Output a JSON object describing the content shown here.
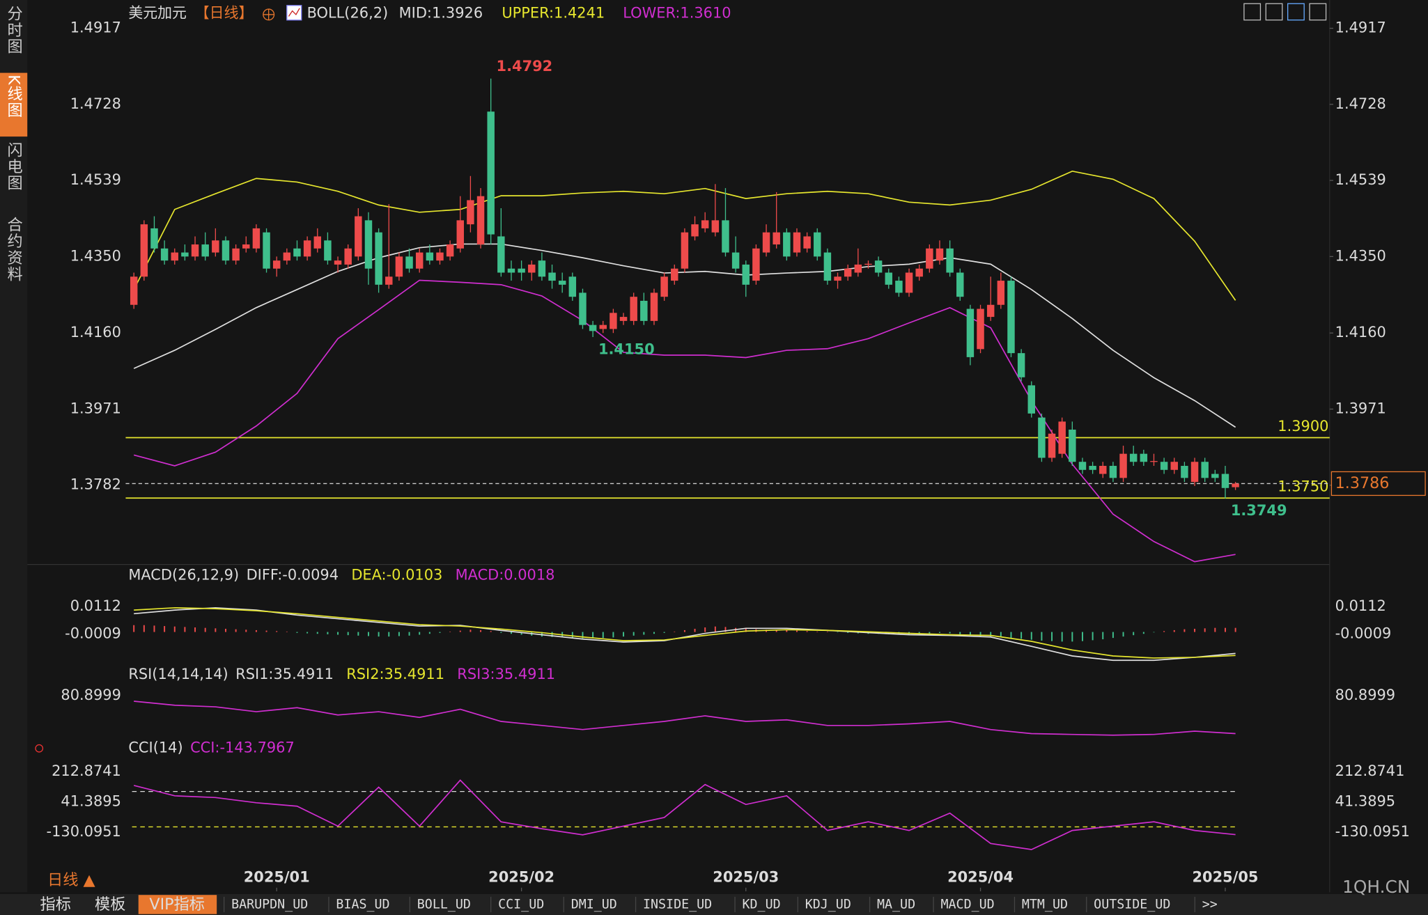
{
  "sidebar_tabs": [
    "分时图",
    "K线图",
    "闪电图",
    "合约资料"
  ],
  "chart_data": {
    "type": "candlestick",
    "header": {
      "symbol": "美元加元",
      "period": "【日线】",
      "indicator": "BOLL(26,2)",
      "mid": "MID:1.3926",
      "upper": "UPPER:1.4241",
      "lower": "LOWER:1.3610"
    },
    "ylim": [
      1.3585,
      1.4942
    ],
    "yticks": [
      1.4917,
      1.4728,
      1.4539,
      {
        "value": 1.435,
        "label": "1.4350"
      },
      {
        "value": 1.416,
        "label": "1.4160"
      },
      1.3971,
      1.3782
    ],
    "xticks": [
      {
        "value": 14,
        "label": "2025/01"
      },
      {
        "value": 38,
        "label": "2025/02"
      },
      {
        "value": 60,
        "label": "2025/03"
      },
      {
        "value": 83,
        "label": "2025/04"
      },
      {
        "value": 107,
        "label": "2025/05"
      }
    ],
    "up_color": "#ee4b4b",
    "down_color": "#3fbf8c",
    "candles": [
      [
        1.423,
        1.431,
        1.422,
        1.43
      ],
      [
        1.43,
        1.444,
        1.429,
        1.443
      ],
      [
        1.442,
        1.445,
        1.436,
        1.437
      ],
      [
        1.437,
        1.439,
        1.433,
        1.434
      ],
      [
        1.434,
        1.437,
        1.433,
        1.436
      ],
      [
        1.436,
        1.438,
        1.434,
        1.435
      ],
      [
        1.435,
        1.44,
        1.434,
        1.438
      ],
      [
        1.438,
        1.441,
        1.434,
        1.435
      ],
      [
        1.436,
        1.442,
        1.435,
        1.439
      ],
      [
        1.439,
        1.44,
        1.433,
        1.434
      ],
      [
        1.434,
        1.438,
        1.433,
        1.437
      ],
      [
        1.437,
        1.44,
        1.436,
        1.438
      ],
      [
        1.437,
        1.443,
        1.436,
        1.442
      ],
      [
        1.441,
        1.442,
        1.431,
        1.432
      ],
      [
        1.432,
        1.435,
        1.43,
        1.434
      ],
      [
        1.434,
        1.437,
        1.433,
        1.436
      ],
      [
        1.437,
        1.439,
        1.434,
        1.435
      ],
      [
        1.435,
        1.44,
        1.434,
        1.439
      ],
      [
        1.437,
        1.442,
        1.436,
        1.44
      ],
      [
        1.439,
        1.441,
        1.433,
        1.434
      ],
      [
        1.433,
        1.435,
        1.431,
        1.434
      ],
      [
        1.433,
        1.438,
        1.432,
        1.437
      ],
      [
        1.435,
        1.447,
        1.434,
        1.445
      ],
      [
        1.444,
        1.446,
        1.428,
        1.432
      ],
      [
        1.441,
        1.442,
        1.426,
        1.428
      ],
      [
        1.428,
        1.448,
        1.427,
        1.43
      ],
      [
        1.43,
        1.436,
        1.429,
        1.435
      ],
      [
        1.435,
        1.437,
        1.431,
        1.432
      ],
      [
        1.432,
        1.437,
        1.431,
        1.436
      ],
      [
        1.436,
        1.438,
        1.433,
        1.434
      ],
      [
        1.434,
        1.437,
        1.433,
        1.436
      ],
      [
        1.435,
        1.439,
        1.434,
        1.438
      ],
      [
        1.437,
        1.45,
        1.436,
        1.444
      ],
      [
        1.443,
        1.455,
        1.441,
        1.449
      ],
      [
        1.438,
        1.452,
        1.437,
        1.45
      ],
      [
        1.471,
        1.4792,
        1.438,
        1.4405
      ],
      [
        1.44,
        1.447,
        1.43,
        1.431
      ],
      [
        1.432,
        1.434,
        1.429,
        1.431
      ],
      [
        1.432,
        1.434,
        1.429,
        1.431
      ],
      [
        1.431,
        1.434,
        1.429,
        1.433
      ],
      [
        1.434,
        1.436,
        1.429,
        1.43
      ],
      [
        1.431,
        1.433,
        1.427,
        1.429
      ],
      [
        1.429,
        1.431,
        1.426,
        1.428
      ],
      [
        1.43,
        1.431,
        1.424,
        1.425
      ],
      [
        1.426,
        1.427,
        1.417,
        1.418
      ],
      [
        1.418,
        1.419,
        1.415,
        1.4165
      ],
      [
        1.417,
        1.419,
        1.416,
        1.418
      ],
      [
        1.417,
        1.422,
        1.416,
        1.421
      ],
      [
        1.419,
        1.421,
        1.418,
        1.42
      ],
      [
        1.419,
        1.426,
        1.418,
        1.425
      ],
      [
        1.424,
        1.426,
        1.418,
        1.419
      ],
      [
        1.419,
        1.427,
        1.418,
        1.426
      ],
      [
        1.425,
        1.431,
        1.424,
        1.43
      ],
      [
        1.429,
        1.433,
        1.428,
        1.432
      ],
      [
        1.432,
        1.442,
        1.431,
        1.441
      ],
      [
        1.44,
        1.445,
        1.439,
        1.443
      ],
      [
        1.442,
        1.446,
        1.441,
        1.444
      ],
      [
        1.441,
        1.453,
        1.44,
        1.444
      ],
      [
        1.444,
        1.452,
        1.435,
        1.436
      ],
      [
        1.436,
        1.44,
        1.431,
        1.432
      ],
      [
        1.433,
        1.434,
        1.425,
        1.428
      ],
      [
        1.429,
        1.438,
        1.428,
        1.437
      ],
      [
        1.436,
        1.443,
        1.435,
        1.441
      ],
      [
        1.438,
        1.451,
        1.437,
        1.441
      ],
      [
        1.441,
        1.442,
        1.434,
        1.435
      ],
      [
        1.436,
        1.442,
        1.435,
        1.441
      ],
      [
        1.437,
        1.441,
        1.436,
        1.44
      ],
      [
        1.441,
        1.442,
        1.434,
        1.435
      ],
      [
        1.436,
        1.437,
        1.428,
        1.429
      ],
      [
        1.429,
        1.431,
        1.427,
        1.43
      ],
      [
        1.43,
        1.433,
        1.429,
        1.432
      ],
      [
        1.431,
        1.437,
        1.43,
        1.433
      ],
      [
        1.433,
        1.434,
        1.432,
        1.4332
      ],
      [
        1.434,
        1.435,
        1.43,
        1.431
      ],
      [
        1.431,
        1.432,
        1.427,
        1.428
      ],
      [
        1.429,
        1.43,
        1.425,
        1.426
      ],
      [
        1.426,
        1.432,
        1.425,
        1.431
      ],
      [
        1.43,
        1.433,
        1.429,
        1.432
      ],
      [
        1.432,
        1.438,
        1.431,
        1.437
      ],
      [
        1.434,
        1.439,
        1.433,
        1.437
      ],
      [
        1.437,
        1.439,
        1.43,
        1.431
      ],
      [
        1.431,
        1.432,
        1.424,
        1.425
      ],
      [
        1.422,
        1.423,
        1.408,
        1.41
      ],
      [
        1.412,
        1.423,
        1.411,
        1.422
      ],
      [
        1.42,
        1.43,
        1.419,
        1.423
      ],
      [
        1.423,
        1.431,
        1.422,
        1.429
      ],
      [
        1.429,
        1.43,
        1.41,
        1.411
      ],
      [
        1.411,
        1.412,
        1.404,
        1.405
      ],
      [
        1.403,
        1.404,
        1.395,
        1.396
      ],
      [
        1.395,
        1.396,
        1.384,
        1.385
      ],
      [
        1.385,
        1.392,
        1.384,
        1.391
      ],
      [
        1.386,
        1.395,
        1.385,
        1.394
      ],
      [
        1.392,
        1.394,
        1.383,
        1.384
      ],
      [
        1.384,
        1.385,
        1.381,
        1.382
      ],
      [
        1.383,
        1.384,
        1.381,
        1.382
      ],
      [
        1.381,
        1.384,
        1.38,
        1.383
      ],
      [
        1.383,
        1.384,
        1.379,
        1.38
      ],
      [
        1.38,
        1.388,
        1.379,
        1.386
      ],
      [
        1.386,
        1.388,
        1.383,
        1.384
      ],
      [
        1.386,
        1.387,
        1.383,
        1.384
      ],
      [
        1.384,
        1.386,
        1.383,
        1.3842
      ],
      [
        1.384,
        1.385,
        1.381,
        1.382
      ],
      [
        1.382,
        1.385,
        1.381,
        1.384
      ],
      [
        1.383,
        1.384,
        1.379,
        1.38
      ],
      [
        1.379,
        1.385,
        1.378,
        1.384
      ],
      [
        1.384,
        1.385,
        1.379,
        1.38
      ],
      [
        1.381,
        1.382,
        1.379,
        1.38
      ],
      [
        1.381,
        1.383,
        1.3749,
        1.3775
      ],
      [
        1.3777,
        1.379,
        1.377,
        1.3786
      ]
    ],
    "boll": {
      "x": [
        0,
        4,
        8,
        12,
        16,
        20,
        24,
        28,
        32,
        36,
        40,
        44,
        48,
        52,
        56,
        60,
        64,
        68,
        72,
        76,
        80,
        84,
        88,
        92,
        96,
        100,
        104,
        108
      ],
      "series": [
        {
          "name": "UPPER",
          "color": "#e6e62e",
          "values": [
            1.4268,
            1.4467,
            1.4506,
            1.4544,
            1.4535,
            1.4512,
            1.4478,
            1.446,
            1.4467,
            1.4501,
            1.4501,
            1.4508,
            1.4512,
            1.4506,
            1.4519,
            1.4494,
            1.4506,
            1.4512,
            1.4506,
            1.4485,
            1.4478,
            1.449,
            1.4517,
            1.4562,
            1.4542,
            1.4494,
            1.4388,
            1.4241
          ]
        },
        {
          "name": "MID",
          "color": "#e0e0e0",
          "values": [
            1.4072,
            1.4117,
            1.4169,
            1.4223,
            1.4268,
            1.4313,
            1.4347,
            1.4372,
            1.4381,
            1.4381,
            1.4365,
            1.4347,
            1.4327,
            1.4309,
            1.4313,
            1.4304,
            1.4309,
            1.4313,
            1.4325,
            1.4331,
            1.4347,
            1.4331,
            1.4268,
            1.4196,
            1.4117,
            1.4049,
            1.3992,
            1.3926
          ]
        },
        {
          "name": "LOWER",
          "color": "#d02ed0",
          "values": [
            1.3857,
            1.383,
            1.3864,
            1.3929,
            1.401,
            1.4146,
            1.4218,
            1.4291,
            1.4286,
            1.428,
            1.4252,
            1.4191,
            1.4112,
            1.4105,
            1.4105,
            1.4099,
            1.4117,
            1.4121,
            1.4146,
            1.4185,
            1.4223,
            1.4173,
            1.3992,
            1.3834,
            1.371,
            1.3642,
            1.3592,
            1.361
          ]
        }
      ]
    },
    "h_lines": [
      {
        "value": 1.39,
        "label": "1.3900"
      },
      {
        "value": 1.375,
        "label": "1.3750"
      }
    ],
    "last_price": {
      "value": 1.3786,
      "label": "1.3786"
    },
    "annotations": [
      {
        "index": 35,
        "value": 1.4792,
        "label": "1.4792",
        "color": "#ee4b4b"
      },
      {
        "index": 45,
        "value": 1.415,
        "label": "1.4150",
        "color": "#3fbf8c"
      },
      {
        "index": 107,
        "value": 1.3749,
        "label": "1.3749",
        "color": "#3fbf8c"
      }
    ],
    "period_label": "日线 ▲"
  },
  "macd": {
    "type": "line",
    "title": "MACD(26,12,9)",
    "legend": [
      "DIFF:-0.0094",
      "DEA:-0.0103",
      "MACD:0.0018"
    ],
    "ylim": [
      -0.0143,
      0.0192
    ],
    "yticks": [
      0.0112,
      -0.0009
    ],
    "x": [
      0,
      4,
      8,
      12,
      16,
      20,
      24,
      28,
      32,
      36,
      40,
      44,
      48,
      52,
      56,
      60,
      64,
      68,
      72,
      76,
      80,
      84,
      88,
      92,
      96,
      100,
      104,
      108
    ],
    "series": [
      {
        "name": "DIFF",
        "color": "#e0e0e0",
        "values": [
          0.008,
          0.0096,
          0.0106,
          0.0096,
          0.0074,
          0.0058,
          0.0042,
          0.0026,
          0.0029,
          0.0007,
          -0.0012,
          -0.0031,
          -0.0044,
          -0.0038,
          -0.0006,
          0.0016,
          0.0016,
          0.0007,
          -0.0003,
          -0.0012,
          -0.0015,
          -0.0022,
          -0.0063,
          -0.0105,
          -0.0124,
          -0.0124,
          -0.0111,
          -0.0094
        ]
      },
      {
        "name": "DEA",
        "color": "#e6e62e",
        "values": [
          0.0096,
          0.0106,
          0.0102,
          0.0093,
          0.008,
          0.0064,
          0.0048,
          0.0032,
          0.0026,
          0.0013,
          -0.0003,
          -0.0022,
          -0.0038,
          -0.0035,
          -0.0015,
          0.0004,
          0.001,
          0.0007,
          0.0001,
          -0.0006,
          -0.0012,
          -0.0015,
          -0.0041,
          -0.0079,
          -0.0105,
          -0.0114,
          -0.0111,
          -0.0103
        ]
      }
    ],
    "histogram": [
      0.003,
      0.003,
      0.0028,
      0.0026,
      0.0024,
      0.0022,
      0.002,
      0.0018,
      0.0016,
      0.0014,
      0.0012,
      0.001,
      0.0008,
      0.0006,
      0.0004,
      0.0002,
      -0.0004,
      -0.0006,
      -0.0008,
      -0.001,
      -0.0012,
      -0.0014,
      -0.0016,
      -0.0018,
      -0.002,
      -0.002,
      -0.0018,
      -0.0016,
      -0.0012,
      -0.0008,
      -0.0004,
      0.0002,
      0.0006,
      0.001,
      0.0008,
      0.0004,
      -0.0004,
      -0.0008,
      -0.0012,
      -0.0016,
      -0.002,
      -0.0022,
      -0.0024,
      -0.0026,
      -0.0028,
      -0.0028,
      -0.0026,
      -0.0024,
      -0.002,
      -0.0016,
      -0.0012,
      -0.0008,
      -0.0004,
      0.0002,
      0.0008,
      0.0014,
      0.002,
      0.0024,
      0.0022,
      0.0018,
      0.0014,
      0.0012,
      0.001,
      0.0008,
      0.0008,
      0.0006,
      0.0004,
      0.0002,
      0.0002,
      -0.0002,
      -0.0004,
      -0.0006,
      -0.0008,
      -0.0008,
      -0.001,
      -0.001,
      -0.001,
      -0.0008,
      -0.0006,
      -0.0004,
      -0.0006,
      -0.001,
      -0.0014,
      -0.0018,
      -0.002,
      -0.0022,
      -0.0026,
      -0.003,
      -0.0034,
      -0.0038,
      -0.004,
      -0.0042,
      -0.0042,
      -0.004,
      -0.0036,
      -0.0032,
      -0.0026,
      -0.002,
      -0.0014,
      -0.0008,
      -0.0002,
      0.0004,
      0.0008,
      0.0012,
      0.0014,
      0.0016,
      0.0018,
      0.0018,
      0.0018
    ]
  },
  "rsi": {
    "type": "line",
    "title": "RSI(14,14,14)",
    "legend": [
      "RSI1:35.4911",
      "RSI2:35.4911",
      "RSI3:35.4911"
    ],
    "ylim": [
      28.7,
      90.6
    ],
    "yticks": [
      80.8999
    ],
    "x": [
      0,
      4,
      8,
      12,
      16,
      20,
      24,
      28,
      32,
      36,
      40,
      44,
      48,
      52,
      56,
      60,
      64,
      68,
      72,
      76,
      80,
      84,
      88,
      92,
      96,
      100,
      104,
      108
    ],
    "series": [
      {
        "name": "RSI",
        "color": "#d02ed0",
        "values": [
          74.1,
          69.3,
          67.4,
          61.6,
          66.4,
          57.7,
          61.6,
          54.8,
          64.5,
          50,
          45.2,
          40.3,
          45.2,
          50,
          56.7,
          50,
          51.9,
          45.2,
          45.2,
          47.1,
          50,
          40.3,
          35.5,
          34.5,
          33.6,
          34.5,
          38.4,
          35.4911
        ]
      }
    ]
  },
  "cci": {
    "type": "line",
    "title": "CCI(14)",
    "legend": [
      "CCI:-143.7967"
    ],
    "ylim": [
      -340.8,
      271.7
    ],
    "yticks": [
      212.8741,
      41.3895,
      -130.0951
    ],
    "levels": [
      100,
      -100
    ],
    "x": [
      0,
      4,
      8,
      12,
      16,
      20,
      24,
      28,
      32,
      36,
      40,
      44,
      48,
      52,
      56,
      60,
      64,
      68,
      72,
      76,
      80,
      84,
      88,
      92,
      96,
      100,
      104,
      108
    ],
    "series": [
      {
        "name": "CCI",
        "color": "#d02ed0",
        "values": [
          134.5,
          75.7,
          65.9,
          36.5,
          16.9,
          -95.8,
          124.7,
          -95.8,
          163.9,
          -71.3,
          -110.5,
          -144.8,
          -95.8,
          -46.8,
          139.4,
          26.7,
          75.7,
          -120.3,
          -71.3,
          -120.3,
          -22.3,
          -193.8,
          -228.1,
          -120.3,
          -95.8,
          -71.3,
          -120.3,
          -143.7967
        ]
      }
    ]
  },
  "bottom_tabs": [
    "指标",
    "模板",
    "VIP指标",
    "BARUPDN_UD",
    "BIAS_UD",
    "BOLL_UD",
    "CCI_UD",
    "DMI_UD",
    "INSIDE_UD",
    "KD_UD",
    "KDJ_UD",
    "MA_UD",
    "MACD_UD",
    "MTM_UD",
    "OUTSIDE_UD",
    ">>"
  ],
  "watermark": "1QH.CN"
}
